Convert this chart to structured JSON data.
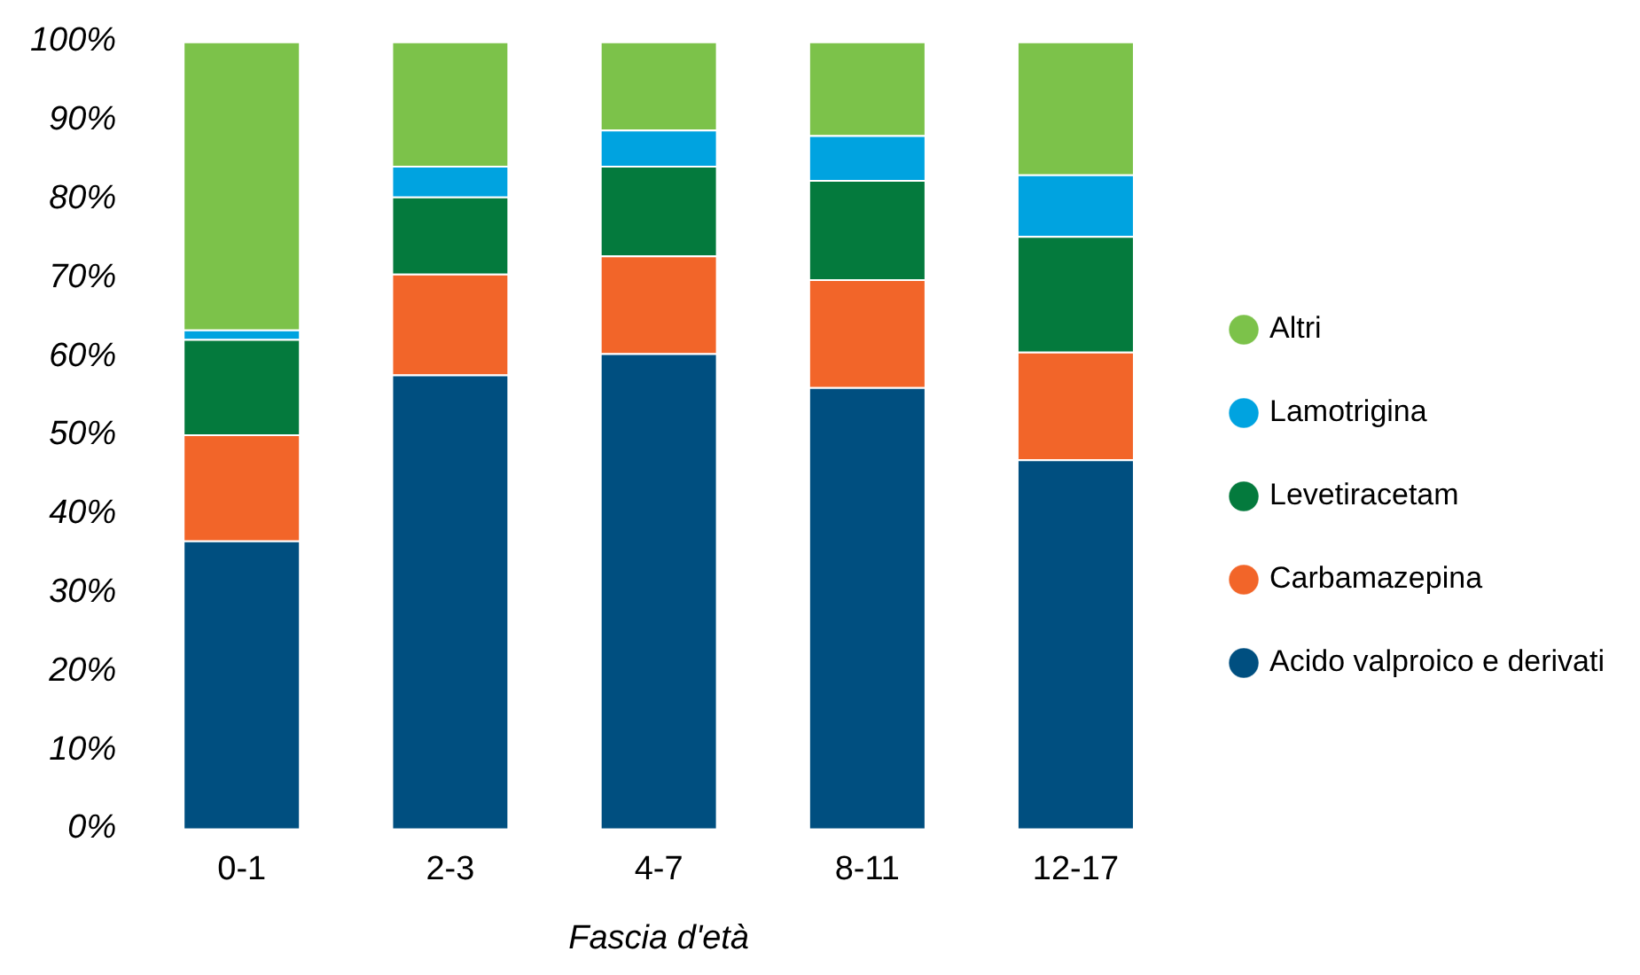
{
  "chart_data": {
    "type": "bar",
    "stacked": true,
    "xlabel": "Fascia d'età",
    "categories": [
      "0-1",
      "2-3",
      "4-7",
      "8-11",
      "12-17"
    ],
    "ylim": [
      0,
      100
    ],
    "yticks": [
      {
        "value": 0,
        "label": "0%"
      },
      {
        "value": 10,
        "label": "10%"
      },
      {
        "value": 20,
        "label": "20%"
      },
      {
        "value": 30,
        "label": "30%"
      },
      {
        "value": 40,
        "label": "40%"
      },
      {
        "value": 50,
        "label": "50%"
      },
      {
        "value": 60,
        "label": "60%"
      },
      {
        "value": 70,
        "label": "70%"
      },
      {
        "value": 80,
        "label": "80%"
      },
      {
        "value": 90,
        "label": "90%"
      },
      {
        "value": 100,
        "label": "100%"
      }
    ],
    "grid": false,
    "legend": "right",
    "series": [
      {
        "name": "Acido valproico e derivati",
        "color": "#004f80",
        "values": [
          36.6,
          57.7,
          60.4,
          56.1,
          46.9
        ]
      },
      {
        "name": "Carbamazepina",
        "color": "#f26529",
        "values": [
          13.5,
          12.8,
          12.4,
          13.7,
          13.7
        ]
      },
      {
        "name": "Levetiracetam",
        "color": "#047a3d",
        "values": [
          12.1,
          9.8,
          11.4,
          12.6,
          14.7
        ]
      },
      {
        "name": "Lamotrigina",
        "color": "#00a3e0",
        "values": [
          1.2,
          3.9,
          4.6,
          5.7,
          7.8
        ]
      },
      {
        "name": "Altri",
        "color": "#7cc24a",
        "values": [
          36.6,
          15.8,
          11.2,
          11.9,
          16.9
        ]
      }
    ]
  }
}
